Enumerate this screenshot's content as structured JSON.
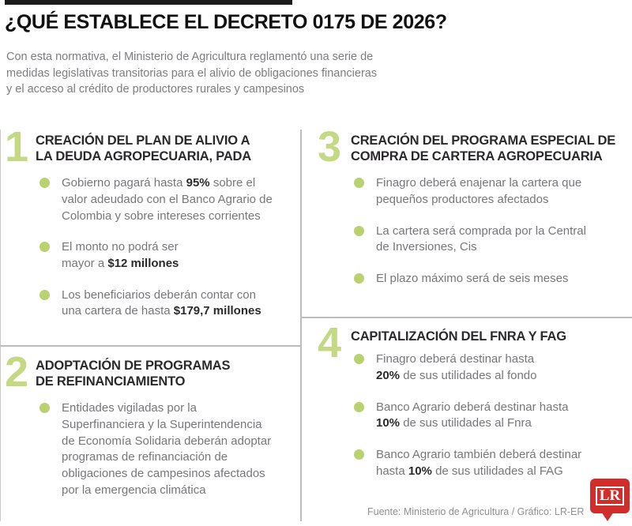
{
  "header": {
    "title": "¿QUÉ ESTABLECE EL DECRETO 0175 DE 2026?",
    "intro": "Con esta normativa, el Ministerio de Agricultura reglamentó una serie de\nmedidas legislativas transitorias para el alivio de obligaciones financieras\ny el acceso al crédito de productores rurales y campesinos"
  },
  "sections": [
    {
      "number": "1",
      "title": "CREACIÓN DEL PLAN DE ALIVIO A\nLA DEUDA AGROPECUARIA, PADA",
      "bullets": [
        {
          "segments": [
            {
              "text": "Gobierno pagará hasta ",
              "bold": false
            },
            {
              "text": "95%",
              "bold": true
            },
            {
              "text": " sobre el\nvalor adeudado con el Banco Agrario de\nColombia y sobre intereses corrientes",
              "bold": false
            }
          ]
        },
        {
          "segments": [
            {
              "text": "El monto no podrá ser\nmayor a ",
              "bold": false
            },
            {
              "text": "$12 millones",
              "bold": true
            }
          ]
        },
        {
          "segments": [
            {
              "text": "Los beneficiarios deberán contar con\nuna cartera de hasta ",
              "bold": false
            },
            {
              "text": "$179,7 millones",
              "bold": true
            }
          ]
        }
      ]
    },
    {
      "number": "2",
      "title": "ADOPTACIÓN DE PROGRAMAS\nDE REFINANCIAMIENTO",
      "bullets": [
        {
          "segments": [
            {
              "text": "Entidades vigiladas por la\nSuperfinanciera y la Superintendencia\nde Economía Solidaria deberán adoptar\nprogramas de refinanciación de\nobligaciones de campesinos afectados\npor la emergencia climática",
              "bold": false
            }
          ]
        }
      ]
    },
    {
      "number": "3",
      "title": "CREACIÓN DEL PROGRAMA ESPECIAL DE\nCOMPRA DE CARTERA AGROPECUARIA",
      "bullets": [
        {
          "segments": [
            {
              "text": "Finagro deberá enajenar la cartera que\npequeños productores afectados",
              "bold": false
            }
          ]
        },
        {
          "segments": [
            {
              "text": "La cartera será comprada por la Central\nde Inversiones, Cis",
              "bold": false
            }
          ]
        },
        {
          "segments": [
            {
              "text": "El plazo máximo será de seis meses",
              "bold": false
            }
          ]
        }
      ]
    },
    {
      "number": "4",
      "title": "CAPITALIZACIÓN DEL FNRA Y FAG",
      "bullets": [
        {
          "segments": [
            {
              "text": "Finagro deberá destinar hasta\n",
              "bold": false
            },
            {
              "text": "20%",
              "bold": true
            },
            {
              "text": " de sus utilidades al fondo",
              "bold": false
            }
          ]
        },
        {
          "segments": [
            {
              "text": "Banco Agrario deberá destinar hasta\n",
              "bold": false
            },
            {
              "text": "10%",
              "bold": true
            },
            {
              "text": " de sus utilidades al Fnra",
              "bold": false
            }
          ]
        },
        {
          "segments": [
            {
              "text": "Banco Agrario también deberá destinar\nhasta ",
              "bold": false
            },
            {
              "text": "10%",
              "bold": true
            },
            {
              "text": " de sus utilidades al FAG",
              "bold": false
            }
          ]
        }
      ]
    }
  ],
  "footer": {
    "source": "Fuente: Ministerio de Agricultura / Gráfico: LR-ER",
    "logo_text": "LR"
  },
  "colors": {
    "accent_green_bullet": "#b9d16f",
    "accent_green_number": "#c5d884",
    "top_bar_black": "#1b1b1b",
    "heading_dark": "#2b292c",
    "body_gray": "#76777a",
    "divider_gray": "#bcbcbc",
    "logo_red": "#cf2e2b"
  }
}
